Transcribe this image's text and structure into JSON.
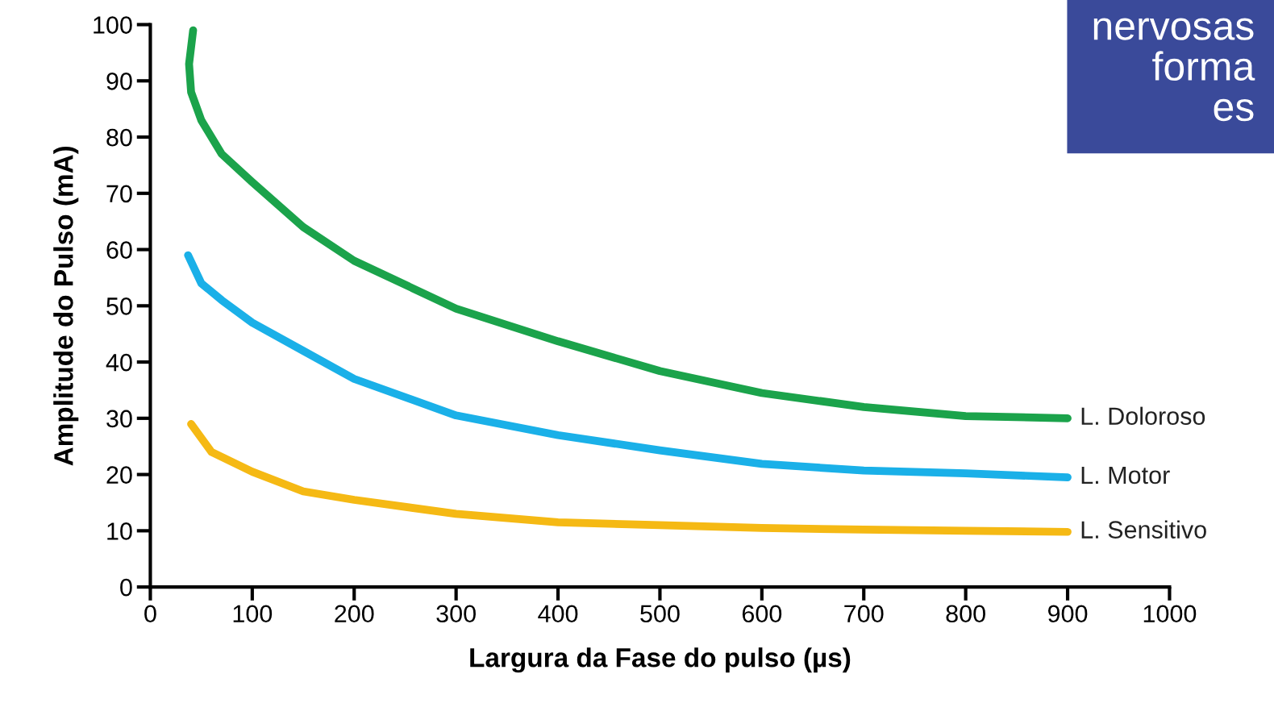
{
  "chart_data": {
    "type": "line",
    "xlabel": "Largura da Fase do pulso (µs)",
    "ylabel": "Amplitude do Pulso (mA)",
    "annotations": [
      "nervosas\nforma\nes"
    ],
    "xlim": [
      0,
      1000
    ],
    "xticks": [
      0,
      100,
      200,
      300,
      400,
      500,
      600,
      700,
      800,
      900,
      1000
    ],
    "ylim": [
      0,
      100
    ],
    "yticks": [
      0,
      10,
      20,
      30,
      40,
      50,
      60,
      70,
      80,
      90,
      100
    ],
    "grid": false,
    "legend": false,
    "marker": "none",
    "line_style": "solid",
    "series": [
      {
        "name": "L. Doloroso",
        "color": "#1ba34b",
        "x": [
          42,
          38,
          40,
          50,
          70,
          100,
          150,
          200,
          300,
          400,
          500,
          600,
          700,
          800,
          900
        ],
        "values": [
          99,
          93,
          88,
          83,
          77,
          72,
          64,
          58,
          49.5,
          43.7,
          38.4,
          34.5,
          32,
          30.4,
          30
        ]
      },
      {
        "name": "L. Motor",
        "color": "#1ab0e8",
        "x": [
          37,
          50,
          70,
          100,
          150,
          200,
          300,
          400,
          500,
          600,
          700,
          800,
          900
        ],
        "values": [
          59,
          54,
          51,
          47,
          42,
          37,
          30.5,
          27,
          24.3,
          21.9,
          20.7,
          20.2,
          19.5
        ]
      },
      {
        "name": "L. Sensitivo",
        "color": "#f5b914",
        "x": [
          40,
          60,
          100,
          150,
          200,
          300,
          400,
          500,
          600,
          700,
          800,
          900
        ],
        "values": [
          29,
          24,
          20.5,
          17,
          15.5,
          13,
          11.5,
          11,
          10.5,
          10.2,
          10,
          9.8
        ]
      }
    ]
  }
}
